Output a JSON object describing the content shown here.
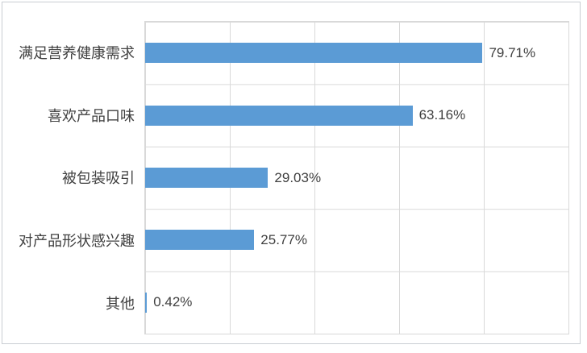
{
  "chart_data": {
    "type": "bar",
    "orientation": "horizontal",
    "title": "",
    "xlabel": "",
    "ylabel": "",
    "categories": [
      "满足营养健康需求",
      "喜欢产品口味",
      "被包装吸引",
      "对产品形状感兴趣",
      "其他"
    ],
    "values": [
      79.71,
      63.16,
      29.03,
      25.77,
      0.42
    ],
    "value_labels": [
      "79.71%",
      "63.16%",
      "29.03%",
      "25.77%",
      "0.42%"
    ],
    "xlim": [
      0,
      100
    ],
    "grid": true,
    "gridline_interval_percent": 20,
    "legend": "none",
    "colors": {
      "bar": "#5b9bd5",
      "gridline": "#d9d9d9",
      "text": "#404040",
      "frame_border": "#c9ced3",
      "background": "#ffffff"
    }
  }
}
